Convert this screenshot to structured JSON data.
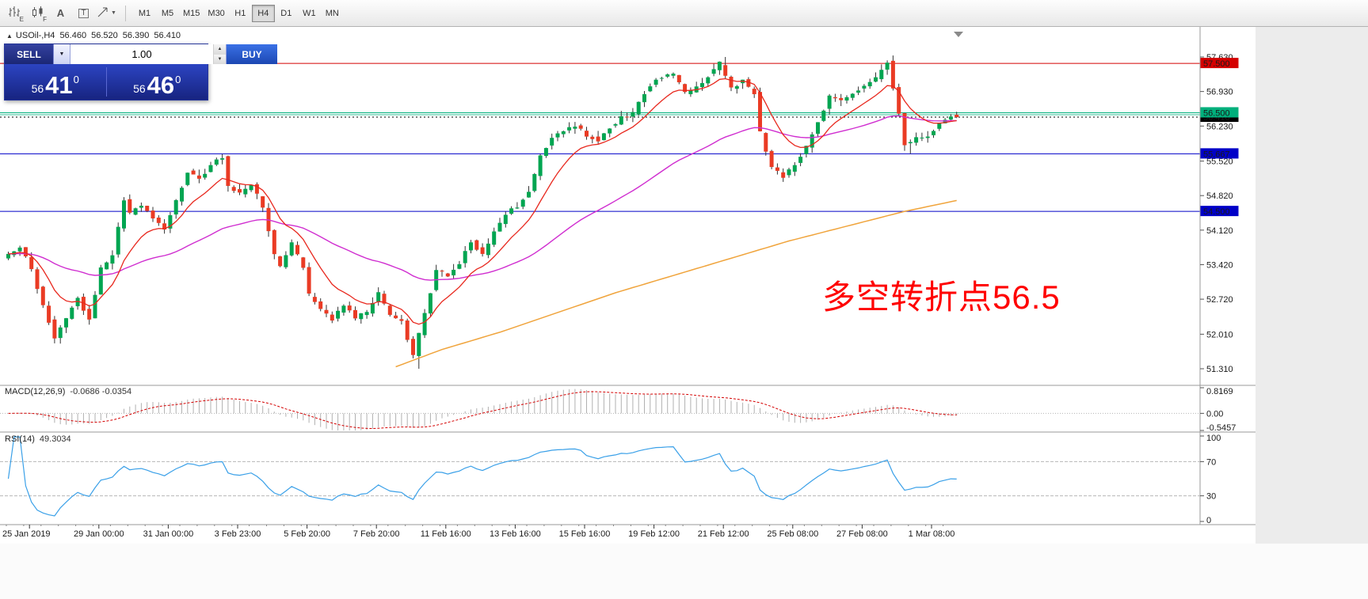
{
  "icons": {
    "collapse": "▲",
    "caret_down": "▼",
    "spin_up": "▲",
    "spin_down": "▼"
  },
  "toolbar": {
    "tools": [
      {
        "name": "chart-bars",
        "type": "bars",
        "sub": "E"
      },
      {
        "name": "chart-candles",
        "type": "candles",
        "sub": "F"
      },
      {
        "name": "cursor-mode",
        "type": "label",
        "label": "A"
      },
      {
        "name": "text-tool",
        "type": "boxed-label",
        "label": "T"
      },
      {
        "name": "draw-tools",
        "type": "arrow",
        "caret": true
      }
    ],
    "timeframes": [
      "M1",
      "M5",
      "M15",
      "M30",
      "H1",
      "H4",
      "D1",
      "W1",
      "MN"
    ],
    "active_timeframe": "H4"
  },
  "chart_header": {
    "symbol": "USOil-,H4",
    "open": "56.460",
    "high": "56.520",
    "low": "56.390",
    "close": "56.410"
  },
  "trade_panel": {
    "sell_label": "SELL",
    "buy_label": "BUY",
    "volume": "1.00",
    "sell_price": {
      "small": "56",
      "big": "41",
      "sup": "0"
    },
    "buy_price": {
      "small": "56",
      "big": "46",
      "sup": "0"
    }
  },
  "indicators": {
    "macd_label": "MACD(12,26,9)",
    "macd_values": "-0.0686 -0.0354",
    "rsi_label": "RSI(14)",
    "rsi_value": "49.3034"
  },
  "annotation": {
    "text": "多空转折点56.5",
    "color": "#ff0000"
  },
  "chart_data": {
    "type": "candlestick",
    "symbol": "USOil-,H4",
    "timeframe": "H4",
    "last_ohlc": {
      "open": 56.46,
      "high": 56.52,
      "low": 56.39,
      "close": 56.41
    },
    "price_range": [
      51.31,
      57.63
    ],
    "y_axis_ticks": [
      "57.630",
      "56.930",
      "56.230",
      "55.520",
      "54.820",
      "54.120",
      "53.420",
      "52.720",
      "52.010",
      "51.310"
    ],
    "level_lines": [
      {
        "price": 57.5,
        "label": "57.500",
        "color": "#d40000",
        "style": "solid"
      },
      {
        "price": 56.41,
        "label": "56.410",
        "color": "#000000",
        "style": "dashed"
      },
      {
        "price": 56.46,
        "label": null,
        "color": "#2fbf96",
        "style": "solid"
      },
      {
        "price": 56.5,
        "label": "56.500",
        "color": "#00b07c",
        "style": "solid"
      },
      {
        "price": 55.667,
        "label": "55.667",
        "color": "#0000c8",
        "style": "solid"
      },
      {
        "price": 54.5,
        "label": "54.500",
        "color": "#0000c8",
        "style": "solid"
      }
    ],
    "x_axis_labels": [
      "25 Jan 2019",
      "29 Jan 00:00",
      "31 Jan 00:00",
      "3 Feb 23:00",
      "5 Feb 20:00",
      "7 Feb 20:00",
      "11 Feb 16:00",
      "13 Feb 16:00",
      "15 Feb 16:00",
      "19 Feb 12:00",
      "21 Feb 12:00",
      "25 Feb 08:00",
      "27 Feb 08:00",
      "1 Mar 08:00"
    ],
    "bars_total": 165,
    "bars_per_label": 12,
    "label_offset_bars": 4,
    "price_path_anchors": [
      [
        0,
        53.55
      ],
      [
        3,
        53.8
      ],
      [
        5,
        53.3
      ],
      [
        7,
        52.6
      ],
      [
        9,
        51.95
      ],
      [
        11,
        52.35
      ],
      [
        13,
        52.75
      ],
      [
        15,
        52.3
      ],
      [
        17,
        53.35
      ],
      [
        19,
        53.6
      ],
      [
        21,
        54.75
      ],
      [
        22,
        54.45
      ],
      [
        24,
        54.65
      ],
      [
        26,
        54.35
      ],
      [
        28,
        54.15
      ],
      [
        30,
        54.7
      ],
      [
        32,
        55.3
      ],
      [
        34,
        55.15
      ],
      [
        36,
        55.45
      ],
      [
        38,
        55.6
      ],
      [
        39,
        55.0
      ],
      [
        41,
        54.85
      ],
      [
        43,
        55.05
      ],
      [
        45,
        54.6
      ],
      [
        47,
        53.6
      ],
      [
        48,
        53.4
      ],
      [
        50,
        53.85
      ],
      [
        52,
        53.35
      ],
      [
        53,
        52.8
      ],
      [
        55,
        52.5
      ],
      [
        57,
        52.3
      ],
      [
        59,
        52.6
      ],
      [
        61,
        52.35
      ],
      [
        63,
        52.45
      ],
      [
        65,
        52.85
      ],
      [
        67,
        52.4
      ],
      [
        69,
        52.25
      ],
      [
        71,
        51.55
      ],
      [
        73,
        52.45
      ],
      [
        75,
        53.3
      ],
      [
        77,
        53.2
      ],
      [
        79,
        53.45
      ],
      [
        81,
        53.9
      ],
      [
        83,
        53.6
      ],
      [
        85,
        54.1
      ],
      [
        87,
        54.45
      ],
      [
        89,
        54.6
      ],
      [
        91,
        54.9
      ],
      [
        93,
        55.6
      ],
      [
        95,
        56.0
      ],
      [
        97,
        56.15
      ],
      [
        99,
        56.25
      ],
      [
        101,
        56.05
      ],
      [
        103,
        55.95
      ],
      [
        105,
        56.2
      ],
      [
        107,
        56.4
      ],
      [
        109,
        56.5
      ],
      [
        111,
        56.9
      ],
      [
        113,
        57.2
      ],
      [
        116,
        57.3
      ],
      [
        118,
        56.9
      ],
      [
        120,
        57.0
      ],
      [
        122,
        57.25
      ],
      [
        124,
        57.5
      ],
      [
        126,
        57.0
      ],
      [
        128,
        57.15
      ],
      [
        130,
        56.9
      ],
      [
        131,
        56.1
      ],
      [
        133,
        55.4
      ],
      [
        135,
        55.2
      ],
      [
        137,
        55.45
      ],
      [
        139,
        55.8
      ],
      [
        141,
        56.3
      ],
      [
        143,
        56.85
      ],
      [
        145,
        56.75
      ],
      [
        147,
        56.9
      ],
      [
        149,
        57.05
      ],
      [
        151,
        57.2
      ],
      [
        153,
        57.55
      ],
      [
        155,
        56.5
      ],
      [
        156,
        55.85
      ],
      [
        158,
        56.0
      ],
      [
        160,
        56.05
      ],
      [
        162,
        56.25
      ],
      [
        164,
        56.41
      ]
    ],
    "forced_extremes": [
      {
        "bar": 71,
        "low": 51.31
      },
      {
        "bar": 124,
        "high": 57.63
      },
      {
        "bar": 153,
        "high": 57.66
      },
      {
        "bar": 156,
        "low": 55.67
      }
    ],
    "orange_ma_anchors": [
      [
        67,
        51.35
      ],
      [
        75,
        51.7
      ],
      [
        85,
        52.05
      ],
      [
        95,
        52.45
      ],
      [
        105,
        52.85
      ],
      [
        115,
        53.2
      ],
      [
        125,
        53.55
      ],
      [
        135,
        53.9
      ],
      [
        145,
        54.2
      ],
      [
        155,
        54.5
      ],
      [
        164,
        54.72
      ]
    ],
    "moving_averages": {
      "fast": {
        "period": 10,
        "color": "#e8281e"
      },
      "mid": {
        "period": 48,
        "color": "#d02ed0"
      },
      "slow": {
        "color": "#f0a43c"
      }
    },
    "candle_colors": {
      "up": "#00a551",
      "down": "#ea3b24",
      "wick": "#333333"
    },
    "macd": {
      "params": [
        12,
        26,
        9
      ],
      "current": [
        -0.0686,
        -0.0354
      ],
      "axis_labels": [
        "0.8169",
        "0.00",
        "-0.5457"
      ],
      "axis_range": [
        -0.5457,
        0.8169
      ],
      "histogram_color": "#b0b0b0",
      "signal_color": "#d40000"
    },
    "rsi": {
      "period": 14,
      "current": 49.3034,
      "axis_labels": [
        "100",
        "70",
        "30",
        "0"
      ],
      "levels": [
        70,
        30
      ],
      "range": [
        0,
        100
      ],
      "line_color": "#3aa0e8"
    }
  }
}
